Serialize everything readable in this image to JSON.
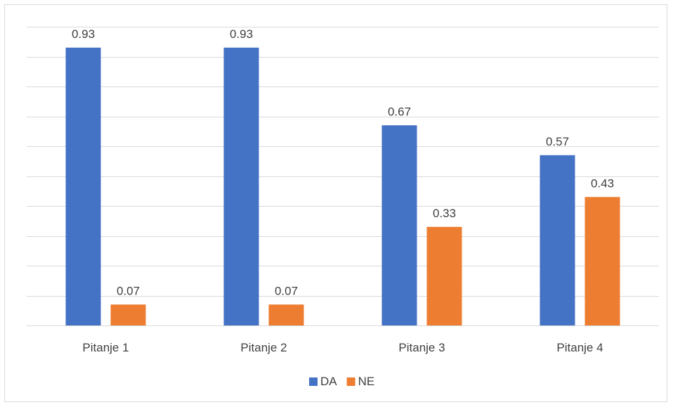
{
  "chart_data": {
    "type": "bar",
    "categories": [
      "Pitanje 1",
      "Pitanje 2",
      "Pitanje 3",
      "Pitanje 4"
    ],
    "series": [
      {
        "name": "DA",
        "values": [
          0.93,
          0.93,
          0.67,
          0.57
        ],
        "color": "#4472c4"
      },
      {
        "name": "NE",
        "values": [
          0.07,
          0.07,
          0.33,
          0.43
        ],
        "color": "#ed7d31"
      }
    ],
    "title": "",
    "xlabel": "",
    "ylabel": "",
    "ylim": [
      0,
      1
    ],
    "grid": true,
    "legend_position": "bottom",
    "gridline_color": "#d9d9d9",
    "axis_color": "#d9d9d9"
  }
}
